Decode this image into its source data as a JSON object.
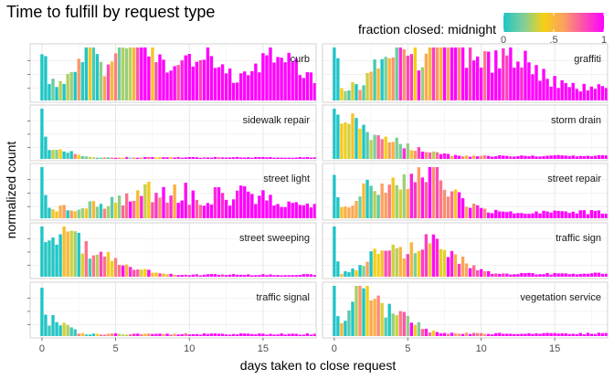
{
  "chart_data": {
    "type": "bar",
    "title": "Time to fulfill by request type",
    "xlabel": "days taken to close request",
    "ylabel": "normalized count",
    "xlim": [
      -0.8,
      18.6
    ],
    "x_ticks": [
      0,
      5,
      10,
      15
    ],
    "bin_width": 0.25,
    "grid": true,
    "legend": {
      "title": "fraction closed: midnight",
      "placement": "top-right",
      "ticks": [
        "0",
        ".5",
        "1"
      ],
      "colors": [
        "#20c5c5",
        "#7fcf9a",
        "#f5d015",
        "#fba060",
        "#fb50b0",
        "#ff00ff"
      ]
    },
    "panels": [
      {
        "name": "curb",
        "peaks": [
          [
            0.0,
            0.25,
            0.7
          ],
          [
            3.0,
            0.6,
            0.65
          ],
          [
            6.5,
            1.2,
            1.0
          ],
          [
            11.0,
            1.0,
            0.7
          ],
          [
            16.0,
            1.2,
            0.55
          ]
        ],
        "base": 0.32,
        "noise": 0.28
      },
      {
        "name": "graffiti",
        "peaks": [
          [
            0.0,
            0.2,
            1.0
          ],
          [
            4.0,
            0.9,
            0.9
          ],
          [
            7.5,
            1.4,
            0.85
          ],
          [
            12.0,
            1.6,
            0.6
          ]
        ],
        "base": 0.25,
        "noise": 0.35
      },
      {
        "name": "sidewalk repair",
        "peaks": [
          [
            0.0,
            0.15,
            1.0
          ],
          [
            1.0,
            0.8,
            0.2
          ]
        ],
        "base": 0.03,
        "noise": 0.3
      },
      {
        "name": "storm drain",
        "peaks": [
          [
            0.0,
            0.15,
            1.0
          ],
          [
            1.0,
            0.8,
            0.6
          ],
          [
            3.0,
            2.0,
            0.35
          ]
        ],
        "base": 0.06,
        "noise": 0.3
      },
      {
        "name": "street light",
        "peaks": [
          [
            0.0,
            0.15,
            1.0
          ],
          [
            8.0,
            2.5,
            0.35
          ],
          [
            14.0,
            2.0,
            0.25
          ]
        ],
        "base": 0.18,
        "noise": 0.45
      },
      {
        "name": "street repair",
        "peaks": [
          [
            0.0,
            0.15,
            1.0
          ],
          [
            6.0,
            1.8,
            0.85
          ],
          [
            2.5,
            1.0,
            0.4
          ]
        ],
        "base": 0.12,
        "noise": 0.35
      },
      {
        "name": "street sweeping",
        "peaks": [
          [
            0.0,
            0.15,
            1.0
          ],
          [
            1.6,
            1.1,
            0.85
          ],
          [
            4.5,
            1.6,
            0.3
          ]
        ],
        "base": 0.04,
        "noise": 0.35
      },
      {
        "name": "traffic sign",
        "peaks": [
          [
            0.0,
            0.15,
            1.0
          ],
          [
            6.5,
            1.7,
            0.6
          ],
          [
            3.0,
            1.0,
            0.35
          ]
        ],
        "base": 0.06,
        "noise": 0.35
      },
      {
        "name": "traffic signal",
        "peaks": [
          [
            0.0,
            0.15,
            1.0
          ],
          [
            1.0,
            0.7,
            0.3
          ]
        ],
        "base": 0.04,
        "noise": 0.35
      },
      {
        "name": "vegetation service",
        "peaks": [
          [
            0.0,
            0.15,
            1.0
          ],
          [
            1.8,
            0.8,
            0.9
          ],
          [
            4.0,
            1.2,
            0.45
          ]
        ],
        "base": 0.05,
        "noise": 0.35
      }
    ]
  }
}
